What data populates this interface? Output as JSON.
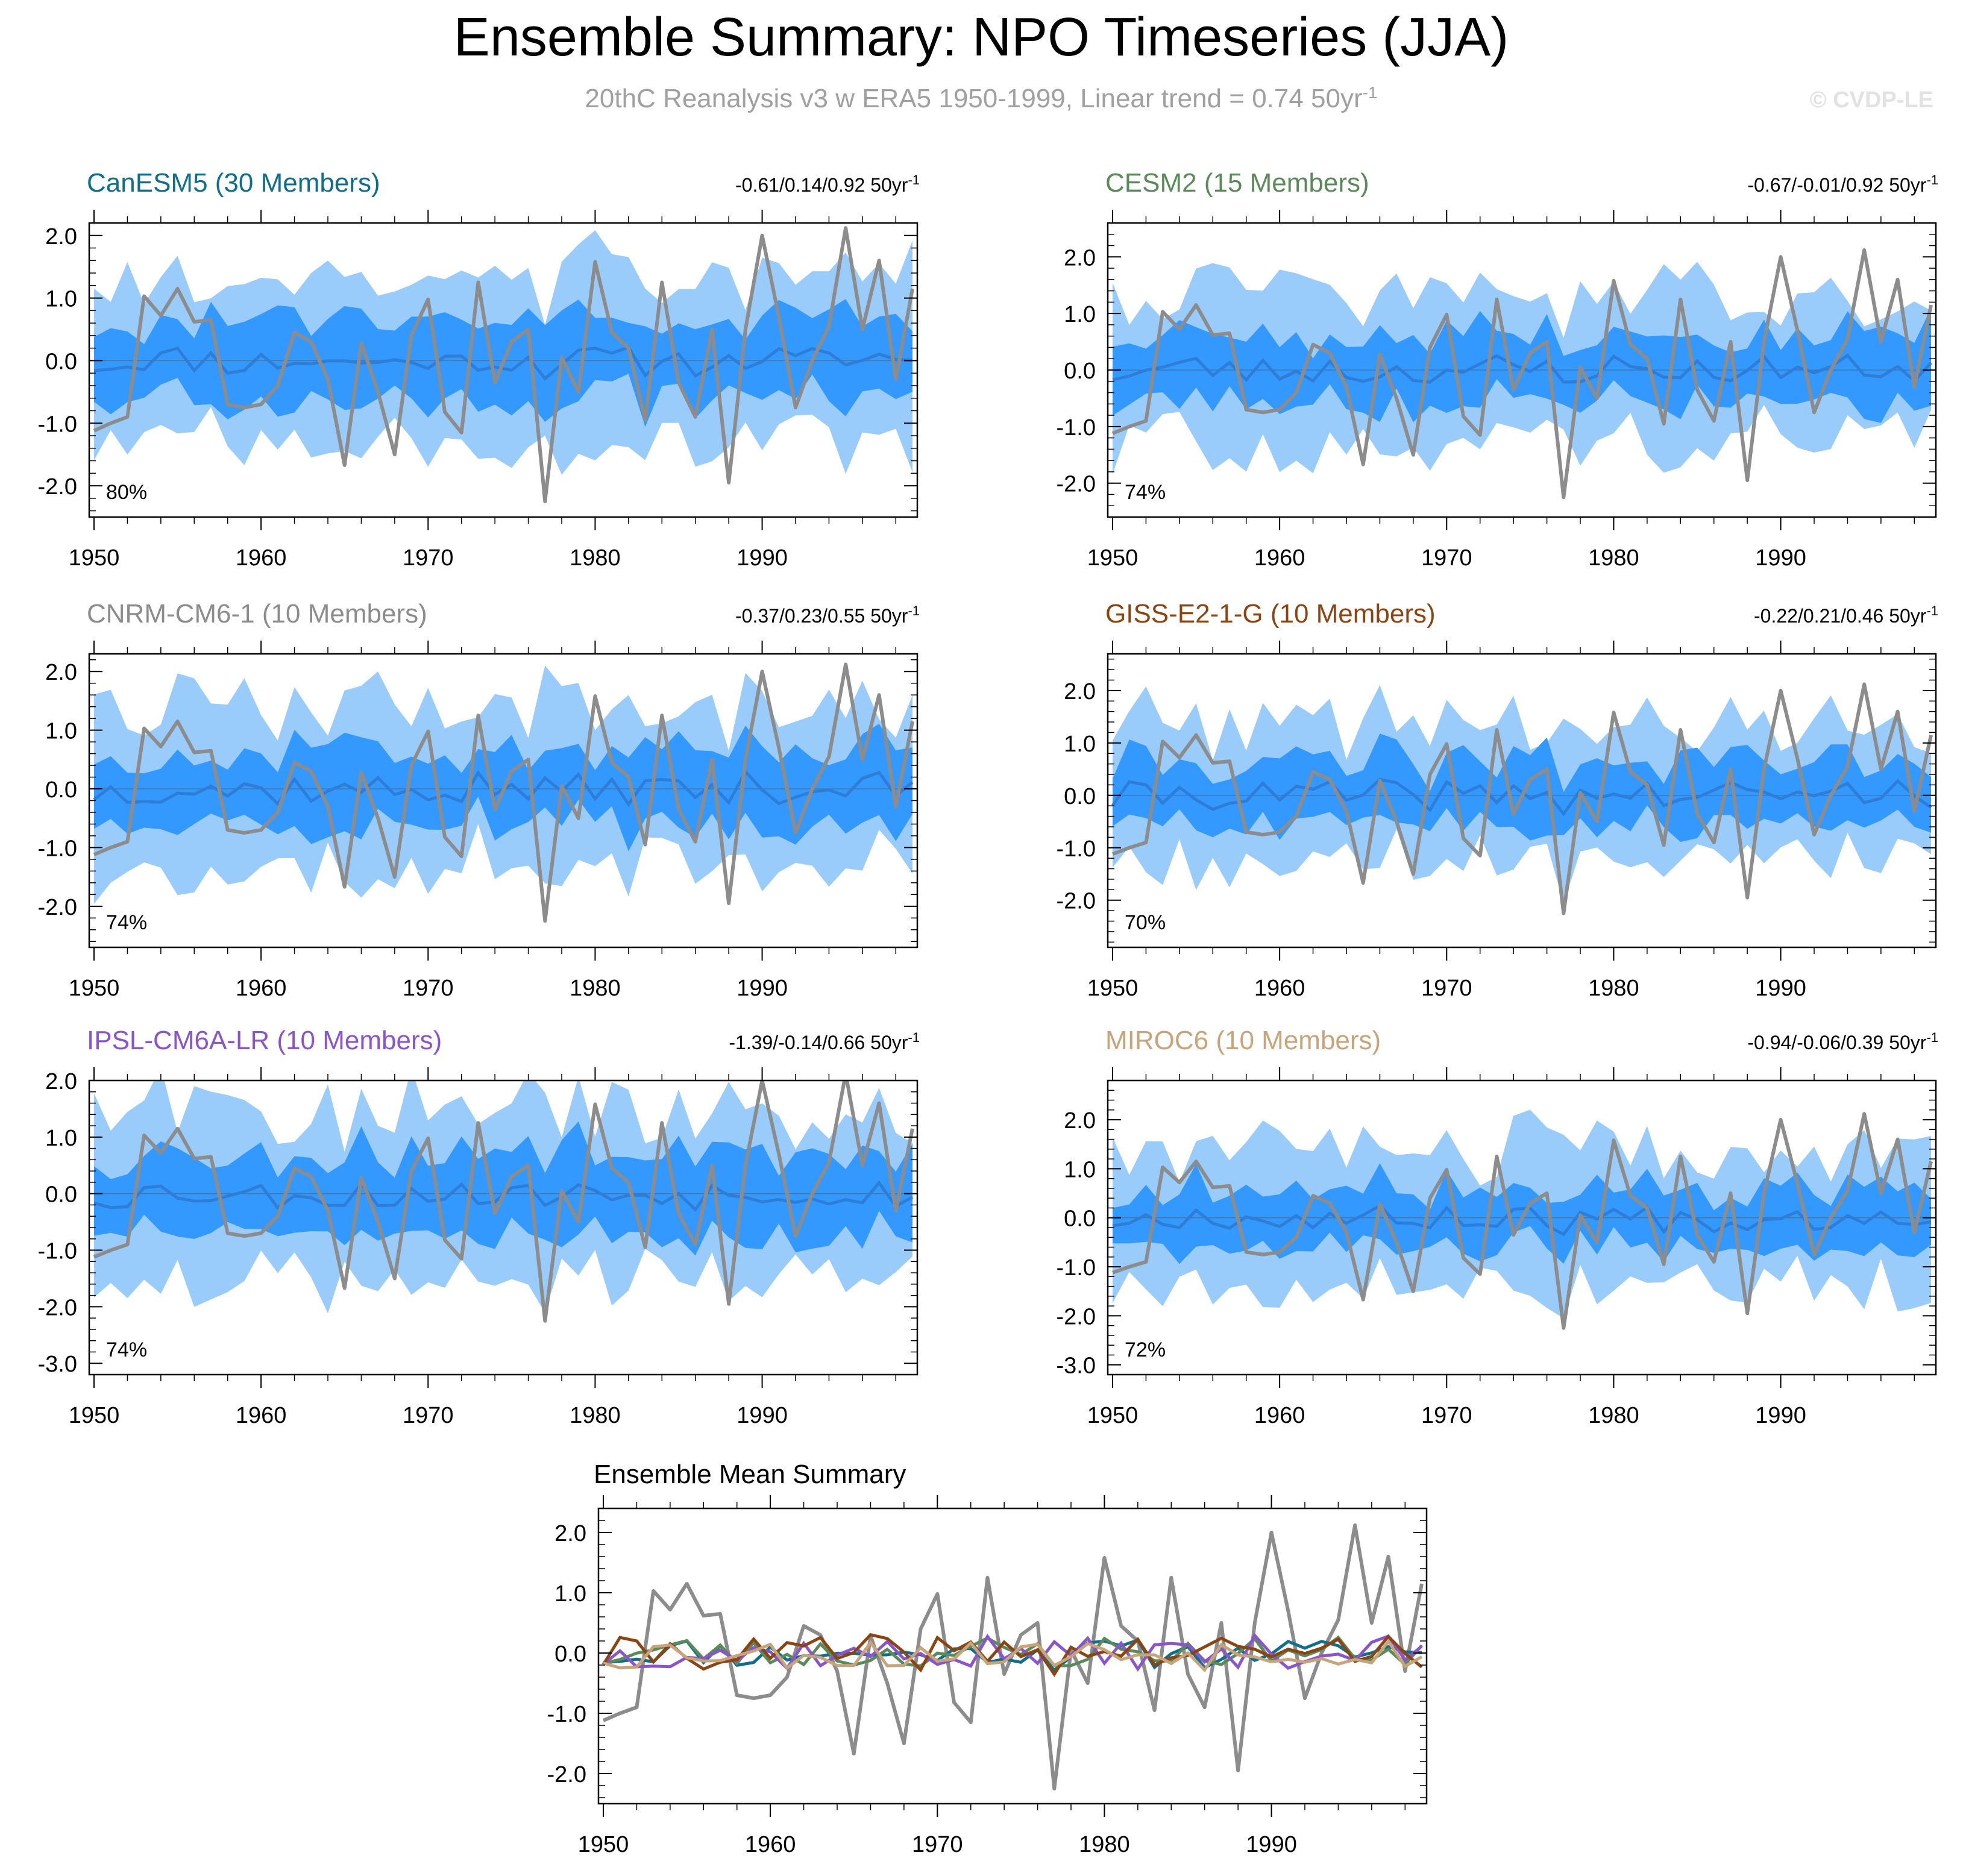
{
  "header": {
    "title": "Ensemble Summary: NPO Timeseries (JJA)",
    "subtitle_main": "20thC Reanalysis v3 w ERA5 1950-1999, Linear trend = 0.74 50yr",
    "subtitle_sup": "-1",
    "watermark": "© CVDP-LE"
  },
  "colors": {
    "light_band": "#99ccfa",
    "dark_band": "#3399ff",
    "ens_mean": "#2e7dd6",
    "obs": "#8c8c8c"
  },
  "chart_data": [
    {
      "type": "area",
      "title": "CanESM5 (30 Members)",
      "title_color": "#0f6e8c",
      "trend_label": "-0.61/0.14/0.92 50yr",
      "trend_sup": "-1",
      "pct_label": "80%",
      "xlim": [
        1950,
        1999
      ],
      "ylim": [
        -2.5,
        2.2
      ],
      "yticks": [
        -2.0,
        -1.0,
        0.0,
        1.0,
        2.0
      ],
      "ytick_labels": [
        "-2.0",
        "-1.0",
        "0.0",
        "1.0",
        "2.0"
      ],
      "xticks": [
        1950,
        1960,
        1970,
        1980,
        1990
      ],
      "xtick_labels": [
        "1950",
        "1960",
        "1970",
        "1980",
        "1990"
      ],
      "seed": 11,
      "p10_range": 0.55,
      "p90_range": 1.2,
      "mean_amp": 0.22
    },
    {
      "type": "area",
      "title": "CESM2 (15 Members)",
      "title_color": "#5a8a5a",
      "trend_label": "-0.67/-0.01/0.92 50yr",
      "trend_sup": "-1",
      "pct_label": "74%",
      "xlim": [
        1950,
        1999
      ],
      "ylim": [
        -2.6,
        2.6
      ],
      "yticks": [
        -2.0,
        -1.0,
        0.0,
        1.0,
        2.0
      ],
      "ytick_labels": [
        "-2.0",
        "-1.0",
        "0.0",
        "1.0",
        "2.0"
      ],
      "xticks": [
        1950,
        1960,
        1970,
        1980,
        1990
      ],
      "xtick_labels": [
        "1950",
        "1960",
        "1970",
        "1980",
        "1990"
      ],
      "seed": 23,
      "p10_range": 0.55,
      "p90_range": 1.15,
      "mean_amp": 0.25
    },
    {
      "type": "area",
      "title": "CNRM-CM6-1 (10 Members)",
      "title_color": "#8c8c8c",
      "trend_label": "-0.37/0.23/0.55 50yr",
      "trend_sup": "-1",
      "pct_label": "74%",
      "xlim": [
        1950,
        1999
      ],
      "ylim": [
        -2.7,
        2.3
      ],
      "yticks": [
        -2.0,
        -1.0,
        0.0,
        1.0,
        2.0
      ],
      "ytick_labels": [
        "-2.0",
        "-1.0",
        "0.0",
        "1.0",
        "2.0"
      ],
      "xticks": [
        1950,
        1960,
        1970,
        1980,
        1990
      ],
      "xtick_labels": [
        "1950",
        "1960",
        "1970",
        "1980",
        "1990"
      ],
      "seed": 37,
      "p10_range": 0.55,
      "p90_range": 1.2,
      "mean_amp": 0.28
    },
    {
      "type": "area",
      "title": "GISS-E2-1-G (10 Members)",
      "title_color": "#8b4513",
      "trend_label": "-0.22/0.21/0.46 50yr",
      "trend_sup": "-1",
      "pct_label": "70%",
      "xlim": [
        1950,
        1999
      ],
      "ylim": [
        -2.9,
        2.7
      ],
      "yticks": [
        -2.0,
        -1.0,
        0.0,
        1.0,
        2.0
      ],
      "ytick_labels": [
        "-2.0",
        "-1.0",
        "0.0",
        "1.0",
        "2.0"
      ],
      "xticks": [
        1950,
        1960,
        1970,
        1980,
        1990
      ],
      "xtick_labels": [
        "1950",
        "1960",
        "1970",
        "1980",
        "1990"
      ],
      "seed": 41,
      "p10_range": 0.55,
      "p90_range": 1.15,
      "mean_amp": 0.3
    },
    {
      "type": "area",
      "title": "IPSL-CM6A-LR (10 Members)",
      "title_color": "#8a55cc",
      "trend_label": "-1.39/-0.14/0.66 50yr",
      "trend_sup": "-1",
      "pct_label": "74%",
      "xlim": [
        1950,
        1999
      ],
      "ylim": [
        -3.2,
        2.0
      ],
      "yticks": [
        -3.0,
        -2.0,
        -1.0,
        0.0,
        1.0,
        2.0
      ],
      "ytick_labels": [
        "-3.0",
        "-2.0",
        "-1.0",
        "0.0",
        "1.0",
        "2.0"
      ],
      "xticks": [
        1950,
        1960,
        1970,
        1980,
        1990
      ],
      "xtick_labels": [
        "1950",
        "1960",
        "1970",
        "1980",
        "1990"
      ],
      "seed": 53,
      "p10_range": 0.6,
      "p90_range": 1.3,
      "mean_amp": 0.25
    },
    {
      "type": "area",
      "title": "MIROC6 (10 Members)",
      "title_color": "#c8a47a",
      "trend_label": "-0.94/-0.06/0.39 50yr",
      "trend_sup": "-1",
      "pct_label": "72%",
      "xlim": [
        1950,
        1999
      ],
      "ylim": [
        -3.2,
        2.8
      ],
      "yticks": [
        -3.0,
        -2.0,
        -1.0,
        0.0,
        1.0,
        2.0
      ],
      "ytick_labels": [
        "-3.0",
        "-2.0",
        "-1.0",
        "0.0",
        "1.0",
        "2.0"
      ],
      "xticks": [
        1950,
        1960,
        1970,
        1980,
        1990
      ],
      "xtick_labels": [
        "1950",
        "1960",
        "1970",
        "1980",
        "1990"
      ],
      "seed": 67,
      "p10_range": 0.5,
      "p90_range": 1.2,
      "mean_amp": 0.25
    },
    {
      "type": "line",
      "title": "Ensemble Mean Summary",
      "title_color": "#000000",
      "xlim": [
        1950,
        1999
      ],
      "ylim": [
        -2.5,
        2.4
      ],
      "yticks": [
        -2.0,
        -1.0,
        0.0,
        1.0,
        2.0
      ],
      "ytick_labels": [
        "-2.0",
        "-1.0",
        "0.0",
        "1.0",
        "2.0"
      ],
      "xticks": [
        1950,
        1960,
        1970,
        1980,
        1990
      ],
      "xtick_labels": [
        "1950",
        "1960",
        "1970",
        "1980",
        "1990"
      ],
      "series_colors": [
        "#0f6e8c",
        "#5a8a5a",
        "#8a55cc",
        "#8b4513",
        "#c8a47a"
      ]
    }
  ],
  "observations": {
    "name": "20thC Reanalysis v3 w ERA5",
    "years_start": 1950,
    "values": [
      -1.12,
      -1.0,
      -0.9,
      1.03,
      0.72,
      1.15,
      0.62,
      0.65,
      -0.7,
      -0.75,
      -0.7,
      -0.4,
      0.45,
      0.3,
      -0.3,
      -1.67,
      0.28,
      -0.5,
      -1.5,
      0.4,
      0.98,
      -0.82,
      -1.15,
      1.25,
      -0.35,
      0.3,
      0.5,
      -2.25,
      0.05,
      -0.5,
      1.58,
      0.45,
      0.2,
      -0.95,
      1.25,
      -0.35,
      -0.9,
      0.5,
      -1.95,
      0.5,
      2.0,
      0.7,
      -0.75,
      0.0,
      0.55,
      2.12,
      0.5,
      1.6,
      -0.3,
      1.15
    ]
  }
}
